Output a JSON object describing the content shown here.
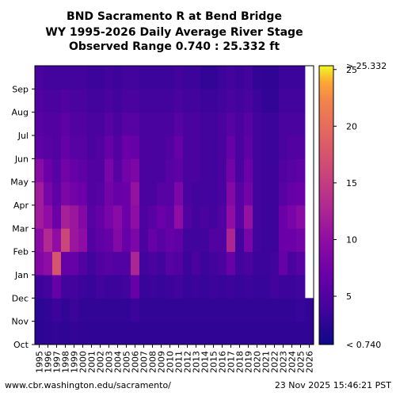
{
  "chart_data": {
    "type": "heatmap",
    "title": [
      "BND Sacramento R at Bend Bridge",
      "WY 1995-2026 Daily Average River Stage",
      "Observed Range 0.740 : 25.332 ft"
    ],
    "x_categories": [
      "1995",
      "1996",
      "1997",
      "1998",
      "1999",
      "2000",
      "2001",
      "2002",
      "2003",
      "2004",
      "2005",
      "2006",
      "2007",
      "2008",
      "2009",
      "2010",
      "2011",
      "2012",
      "2013",
      "2014",
      "2015",
      "2016",
      "2017",
      "2018",
      "2019",
      "2020",
      "2021",
      "2022",
      "2023",
      "2024",
      "2025",
      "2026"
    ],
    "y_categories": [
      "Oct",
      "Nov",
      "Dec",
      "Jan",
      "Feb",
      "Mar",
      "Apr",
      "May",
      "Jun",
      "Jul",
      "Aug",
      "Sep"
    ],
    "xlabel": "",
    "ylabel": "",
    "colorbar": {
      "min": 0.74,
      "max": 25.332,
      "ticks": [
        5,
        10,
        15,
        20,
        25
      ],
      "top_label": "> 25.332",
      "bottom_label": "< 0.740",
      "colormap": "plasma"
    },
    "monthly_mean_stage": [
      [
        2.5,
        2.6,
        3.6,
        8.8,
        9.5,
        11.5,
        11.5,
        9.5,
        6.0,
        5.5,
        5.0,
        4.5
      ],
      [
        2.8,
        3.0,
        4.0,
        10.0,
        13.0,
        10.0,
        8.0,
        7.0,
        5.5,
        5.0,
        4.5,
        4.0
      ],
      [
        3.0,
        3.6,
        6.5,
        17.5,
        10.0,
        7.0,
        6.0,
        5.5,
        5.0,
        5.0,
        4.5,
        4.0
      ],
      [
        2.8,
        3.0,
        3.8,
        6.5,
        16.0,
        12.0,
        8.5,
        7.5,
        6.5,
        6.0,
        5.0,
        4.0
      ],
      [
        3.0,
        3.5,
        4.0,
        6.5,
        11.0,
        11.0,
        7.5,
        6.5,
        5.5,
        5.0,
        4.5,
        4.0
      ],
      [
        2.8,
        3.0,
        3.5,
        5.0,
        10.0,
        9.0,
        7.0,
        6.0,
        5.5,
        5.0,
        4.5,
        4.0
      ],
      [
        2.8,
        3.0,
        3.2,
        3.8,
        5.0,
        5.5,
        5.0,
        5.0,
        4.5,
        4.5,
        4.0,
        3.5
      ],
      [
        2.8,
        3.0,
        4.0,
        5.0,
        6.0,
        6.5,
        5.5,
        5.0,
        5.0,
        4.5,
        4.0,
        3.5
      ],
      [
        2.8,
        3.0,
        3.5,
        5.5,
        6.5,
        8.0,
        7.5,
        8.0,
        6.5,
        5.5,
        4.5,
        4.0
      ],
      [
        2.8,
        3.0,
        3.5,
        5.0,
        9.0,
        9.5,
        6.5,
        5.5,
        5.0,
        4.5,
        4.0,
        3.5
      ],
      [
        2.8,
        3.0,
        4.0,
        5.0,
        6.5,
        7.0,
        7.0,
        7.5,
        7.0,
        5.5,
        4.5,
        4.0
      ],
      [
        2.8,
        3.5,
        6.5,
        12.5,
        8.5,
        10.0,
        10.5,
        8.5,
        6.5,
        5.5,
        4.5,
        4.0
      ],
      [
        2.8,
        3.0,
        3.2,
        3.8,
        4.5,
        4.8,
        4.5,
        4.5,
        4.5,
        4.5,
        4.0,
        3.5
      ],
      [
        2.8,
        3.0,
        3.5,
        4.5,
        6.5,
        5.5,
        4.5,
        4.5,
        4.5,
        4.5,
        4.0,
        3.5
      ],
      [
        2.8,
        3.0,
        3.2,
        4.0,
        5.5,
        7.0,
        5.5,
        4.5,
        4.5,
        4.5,
        4.0,
        3.5
      ],
      [
        2.8,
        3.0,
        3.5,
        5.5,
        6.5,
        6.0,
        5.5,
        5.5,
        5.0,
        4.5,
        4.0,
        3.5
      ],
      [
        2.8,
        3.0,
        3.8,
        5.0,
        6.0,
        10.0,
        8.5,
        6.0,
        6.5,
        5.5,
        4.5,
        4.0
      ],
      [
        2.8,
        3.0,
        3.2,
        3.5,
        3.8,
        5.0,
        4.5,
        4.5,
        4.5,
        4.5,
        4.0,
        3.5
      ],
      [
        2.8,
        3.0,
        3.5,
        4.5,
        3.8,
        4.0,
        4.0,
        4.5,
        4.5,
        4.5,
        4.0,
        3.5
      ],
      [
        2.8,
        3.0,
        3.2,
        3.5,
        3.8,
        4.5,
        4.0,
        4.0,
        4.0,
        4.0,
        3.5,
        3.0
      ],
      [
        2.8,
        3.0,
        3.5,
        4.0,
        5.0,
        4.0,
        3.8,
        3.8,
        3.8,
        4.0,
        3.5,
        3.0
      ],
      [
        2.8,
        3.0,
        3.2,
        4.5,
        5.0,
        5.0,
        4.5,
        4.5,
        4.5,
        4.5,
        4.0,
        3.5
      ],
      [
        2.8,
        3.0,
        3.5,
        6.5,
        12.5,
        10.0,
        9.0,
        7.5,
        6.5,
        5.5,
        4.5,
        4.0
      ],
      [
        2.8,
        3.0,
        3.2,
        3.8,
        4.0,
        5.5,
        5.5,
        4.5,
        4.5,
        4.5,
        4.0,
        3.5
      ],
      [
        2.8,
        3.0,
        3.5,
        4.5,
        8.0,
        10.5,
        7.5,
        7.0,
        6.0,
        5.5,
        4.5,
        4.0
      ],
      [
        2.8,
        3.0,
        3.2,
        3.5,
        3.8,
        4.0,
        4.0,
        4.0,
        4.0,
        4.0,
        3.5,
        3.0
      ],
      [
        2.8,
        3.0,
        3.2,
        3.5,
        3.5,
        3.5,
        3.5,
        3.5,
        3.5,
        3.5,
        3.0,
        2.8
      ],
      [
        2.8,
        3.0,
        4.0,
        3.8,
        3.5,
        3.5,
        3.5,
        3.5,
        3.5,
        3.5,
        3.0,
        2.8
      ],
      [
        2.8,
        3.0,
        3.5,
        6.5,
        7.0,
        7.0,
        5.5,
        5.0,
        4.5,
        4.5,
        4.0,
        3.5
      ],
      [
        2.8,
        3.0,
        3.5,
        4.5,
        7.0,
        8.0,
        6.5,
        5.5,
        5.0,
        4.5,
        4.0,
        3.5
      ],
      [
        2.8,
        3.2,
        3.8,
        5.5,
        7.5,
        9.5,
        7.0,
        6.0,
        5.0,
        4.5,
        4.0,
        3.5
      ],
      [
        2.8,
        3.0,
        null,
        null,
        null,
        null,
        null,
        null,
        null,
        null,
        null,
        null
      ]
    ]
  },
  "footer": {
    "source_url": "www.cbr.washington.edu/sacramento/",
    "timestamp": "23 Nov 2025 15:46:21 PST"
  }
}
